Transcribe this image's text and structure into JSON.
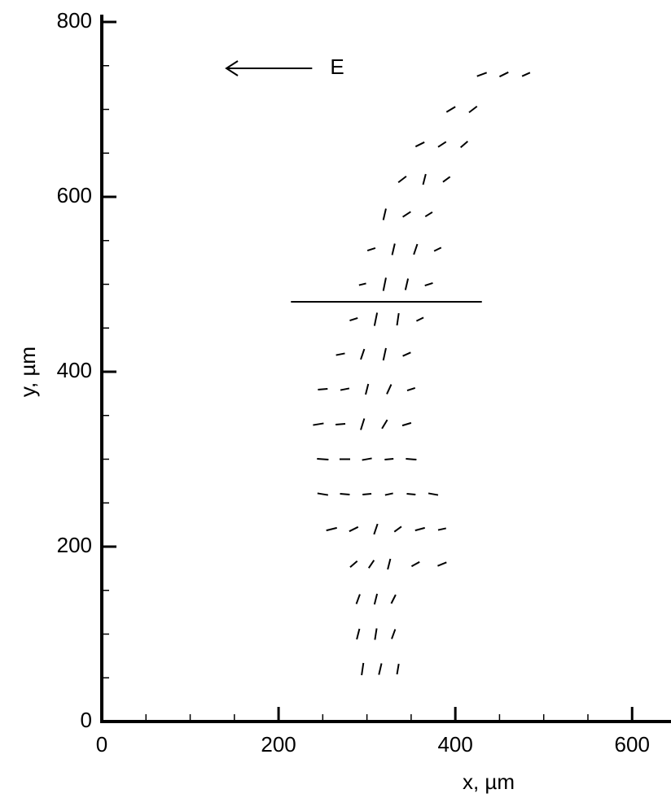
{
  "chart_data": {
    "type": "quiver",
    "xlabel": "x, µm",
    "ylabel": "y, µm",
    "xlim": [
      0,
      644
    ],
    "ylim": [
      0,
      800
    ],
    "xticks": [
      0,
      200,
      400,
      600
    ],
    "yticks": [
      0,
      200,
      400,
      600,
      800
    ],
    "xminor": [
      50,
      100,
      150,
      250,
      300,
      350,
      450,
      500,
      550
    ],
    "yminor": [
      50,
      100,
      150,
      250,
      300,
      350,
      450,
      500,
      550,
      650,
      700,
      750
    ],
    "color": "#000000",
    "x": [
      295,
      315,
      335,
      290,
      310,
      330,
      290,
      310,
      330,
      285,
      305,
      325,
      355,
      385,
      260,
      285,
      310,
      335,
      360,
      385,
      250,
      275,
      300,
      325,
      350,
      375,
      250,
      275,
      300,
      325,
      350,
      245,
      270,
      295,
      320,
      345,
      250,
      275,
      300,
      325,
      350,
      270,
      295,
      320,
      345,
      285,
      310,
      335,
      360,
      295,
      320,
      345,
      370,
      305,
      330,
      355,
      380,
      320,
      345,
      370,
      340,
      365,
      390,
      360,
      385,
      410,
      395,
      420,
      430,
      455,
      480
    ],
    "y": [
      60,
      60,
      60,
      100,
      100,
      100,
      140,
      140,
      140,
      180,
      180,
      180,
      180,
      180,
      220,
      220,
      220,
      220,
      220,
      220,
      260,
      260,
      260,
      260,
      260,
      260,
      300,
      300,
      300,
      300,
      300,
      340,
      340,
      340,
      340,
      340,
      380,
      380,
      380,
      380,
      380,
      420,
      420,
      420,
      420,
      460,
      460,
      460,
      460,
      500,
      500,
      500,
      500,
      540,
      540,
      540,
      540,
      580,
      580,
      580,
      620,
      620,
      620,
      660,
      660,
      660,
      700,
      700,
      740,
      740,
      740
    ],
    "u": [
      2,
      3,
      2,
      3,
      2,
      4,
      4,
      3,
      5,
      8,
      6,
      3,
      9,
      10,
      12,
      10,
      4,
      8,
      11,
      9,
      12,
      11,
      10,
      9,
      10,
      11,
      13,
      12,
      11,
      10,
      12,
      12,
      11,
      4,
      6,
      10,
      11,
      10,
      3,
      5,
      9,
      10,
      4,
      3,
      9,
      9,
      3,
      2,
      8,
      8,
      3,
      3,
      9,
      9,
      3,
      4,
      8,
      3,
      9,
      8,
      9,
      3,
      8,
      10,
      9,
      8,
      10,
      9,
      11,
      10,
      9
    ],
    "v": [
      14,
      13,
      12,
      12,
      13,
      11,
      11,
      12,
      10,
      7,
      9,
      12,
      5,
      4,
      3,
      5,
      12,
      6,
      3,
      2,
      -2,
      -1,
      1,
      2,
      -1,
      -2,
      -1,
      0,
      2,
      1,
      -1,
      2,
      1,
      13,
      10,
      3,
      1,
      2,
      12,
      11,
      3,
      2,
      12,
      14,
      4,
      3,
      15,
      14,
      4,
      2,
      15,
      13,
      3,
      3,
      13,
      12,
      4,
      13,
      6,
      5,
      7,
      12,
      6,
      5,
      6,
      7,
      6,
      7,
      4,
      5,
      4
    ],
    "annotations": [
      {
        "type": "line",
        "x": [
          214,
          430
        ],
        "y": [
          480,
          480
        ]
      },
      {
        "type": "arrow",
        "text": "E",
        "x": [
          238,
          141
        ],
        "y": [
          747,
          747
        ]
      }
    ]
  }
}
